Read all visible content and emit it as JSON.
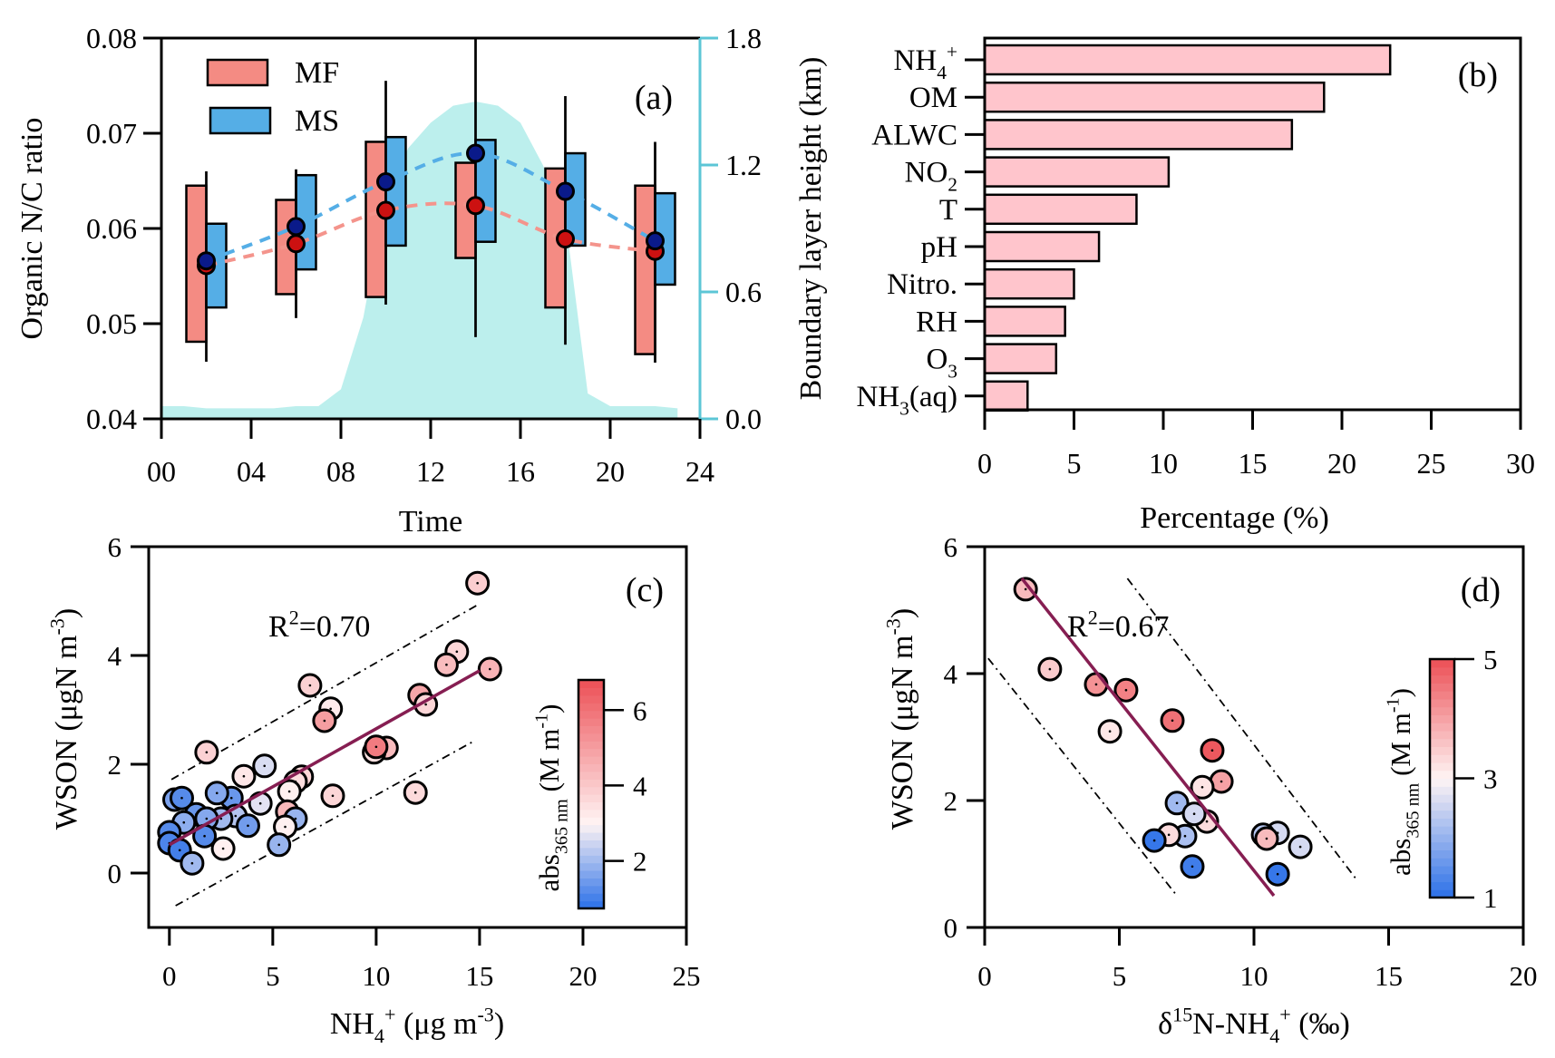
{
  "chart_data": [
    {
      "panel": "a",
      "type": "box",
      "panel_label": "(a)",
      "xlabel": "Time",
      "ylabel": "Organic N/C ratio",
      "y2label": "Boundary layer height (km)",
      "xlim": [
        0,
        24
      ],
      "ylim": [
        0.04,
        0.08
      ],
      "y2lim": [
        0.0,
        1.8
      ],
      "xticks": [
        "00",
        "04",
        "08",
        "12",
        "16",
        "20",
        "24"
      ],
      "xtick_values": [
        0,
        4,
        8,
        12,
        16,
        20,
        24
      ],
      "yticks": [
        "0.04",
        "0.05",
        "0.06",
        "0.07",
        "0.08"
      ],
      "ytick_values": [
        0.04,
        0.05,
        0.06,
        0.07,
        0.08
      ],
      "y2ticks": [
        "0.0",
        "0.6",
        "1.2",
        "1.8"
      ],
      "y2tick_values": [
        0.0,
        0.6,
        1.2,
        1.8
      ],
      "legend": [
        {
          "name": "MF",
          "color": "#f48b83"
        },
        {
          "name": "MS",
          "color": "#55aee6"
        }
      ],
      "legend_position": "top-left",
      "colors": {
        "MF": "#f48b83",
        "MS": "#55aee6",
        "MF_mean": "#cc1111",
        "MS_mean": "#0a1a8a",
        "MF_line": "#f4948c",
        "MS_line": "#55aee6",
        "BLH": "#bcefed",
        "right_axis": "#5cc6d6"
      },
      "series": [
        {
          "name": "MF",
          "times": [
            2,
            6,
            10,
            14,
            18,
            22
          ],
          "q1": [
            0.0481,
            0.0531,
            0.0528,
            0.0569,
            0.0517,
            0.0468
          ],
          "q3": [
            0.0645,
            0.063,
            0.0691,
            0.0669,
            0.0663,
            0.0645
          ],
          "mean": [
            0.0561,
            0.0584,
            0.0619,
            0.0624,
            0.0589,
            0.0576
          ]
        },
        {
          "name": "MS",
          "times": [
            2,
            6,
            10,
            14,
            18,
            22
          ],
          "q1": [
            0.0517,
            0.0557,
            0.0582,
            0.0586,
            0.0582,
            0.0541
          ],
          "q3": [
            0.0605,
            0.0656,
            0.0696,
            0.0693,
            0.0679,
            0.0637
          ],
          "mean": [
            0.0566,
            0.0602,
            0.0649,
            0.0679,
            0.0639,
            0.0587
          ]
        }
      ],
      "whiskers": {
        "times": [
          2,
          6,
          10,
          14,
          18,
          22
        ],
        "low": [
          0.046,
          0.0506,
          0.052,
          0.0486,
          0.0478,
          0.0459
        ],
        "high": [
          0.066,
          0.0662,
          0.0755,
          0.08,
          0.0739,
          0.0691
        ]
      },
      "boundary_layer_height": {
        "x": [
          0,
          1,
          2,
          3,
          4,
          5,
          6,
          7,
          8,
          9,
          10,
          11,
          12,
          13,
          14,
          15,
          16,
          17,
          18,
          19,
          20,
          21,
          22,
          23
        ],
        "y": [
          0.06,
          0.06,
          0.05,
          0.05,
          0.05,
          0.05,
          0.06,
          0.06,
          0.14,
          0.48,
          1.05,
          1.28,
          1.4,
          1.48,
          1.5,
          1.48,
          1.4,
          1.2,
          0.95,
          0.12,
          0.06,
          0.06,
          0.06,
          0.05
        ]
      }
    },
    {
      "panel": "b",
      "type": "bar",
      "orientation": "horizontal",
      "panel_label": "(b)",
      "xlabel": "Percentage (%)",
      "ylabel": "",
      "xlim": [
        0,
        30
      ],
      "xticks": [
        "0",
        "5",
        "10",
        "15",
        "20",
        "25",
        "30"
      ],
      "xtick_values": [
        0,
        5,
        10,
        15,
        20,
        25,
        30
      ],
      "bar_color": "#ffc5cc",
      "categories": [
        {
          "base": "NH",
          "sub": "4",
          "sup": "+"
        },
        {
          "base": "OM",
          "sub": "",
          "sup": ""
        },
        {
          "base": "ALWC",
          "sub": "",
          "sup": ""
        },
        {
          "base": "NO",
          "sub": "2",
          "sup": ""
        },
        {
          "base": "T",
          "sub": "",
          "sup": ""
        },
        {
          "base": "pH",
          "sub": "",
          "sup": ""
        },
        {
          "base": "Nitro.",
          "sub": "",
          "sup": ""
        },
        {
          "base": "RH",
          "sub": "",
          "sup": ""
        },
        {
          "base": "O",
          "sub": "3",
          "sup": ""
        },
        {
          "base": "NH",
          "sub": "3",
          "sup": "",
          "suffix": "(aq)"
        }
      ],
      "values": [
        22.7,
        19.0,
        17.2,
        10.3,
        8.5,
        6.4,
        5.0,
        4.5,
        4.0,
        2.4
      ]
    },
    {
      "panel": "c",
      "type": "scatter",
      "panel_label": "(c)",
      "xlabel": {
        "base": "NH",
        "sub": "4",
        "sup": "+",
        "rest": " (μg m",
        "rest_sup": "-3",
        "end": ")"
      },
      "ylabel": {
        "base": "WSON (μgN m",
        "sup": "-3",
        "end": ")"
      },
      "xlim": [
        -1,
        25
      ],
      "ylim": [
        -1,
        6
      ],
      "xticks": [
        "0",
        "5",
        "10",
        "15",
        "20",
        "25"
      ],
      "xtick_values": [
        0,
        5,
        10,
        15,
        20,
        25
      ],
      "yticks": [
        "0",
        "2",
        "4",
        "6"
      ],
      "ytick_values": [
        0,
        2,
        4,
        6
      ],
      "annotation": {
        "text": "R",
        "sup": "2",
        "rest": "=0.70"
      },
      "colorbar": {
        "label": "abs",
        "label_sub": "365 nm",
        "label_rest": " (M m",
        "label_sup": "-1",
        "label_end": ")",
        "range": [
          0.74,
          6.8
        ],
        "ticks": [
          "2",
          "4",
          "6"
        ],
        "tick_values": [
          2,
          4,
          6
        ],
        "center": 3.0
      },
      "fit": {
        "x": [
          0,
          15.0
        ],
        "y": [
          0.52,
          3.72
        ]
      },
      "bounds_upper": {
        "x": [
          0.1,
          15.0
        ],
        "y": [
          1.72,
          4.95
        ]
      },
      "bounds_lower": {
        "x": [
          0.3,
          14.7
        ],
        "y": [
          -0.6,
          2.42
        ]
      },
      "points": [
        {
          "x": 14.9,
          "y": 5.33,
          "c": 3.9
        },
        {
          "x": 13.9,
          "y": 4.07,
          "c": 3.7
        },
        {
          "x": 13.4,
          "y": 3.83,
          "c": 4.3
        },
        {
          "x": 15.5,
          "y": 3.75,
          "c": 4.5
        },
        {
          "x": 6.8,
          "y": 3.45,
          "c": 3.8
        },
        {
          "x": 7.8,
          "y": 3.02,
          "c": 3.2
        },
        {
          "x": 7.5,
          "y": 2.8,
          "c": 5.0
        },
        {
          "x": 12.1,
          "y": 3.27,
          "c": 4.8
        },
        {
          "x": 12.4,
          "y": 3.1,
          "c": 3.7
        },
        {
          "x": 10.5,
          "y": 2.3,
          "c": 4.3
        },
        {
          "x": 9.9,
          "y": 2.22,
          "c": 3.4
        },
        {
          "x": 10.0,
          "y": 2.32,
          "c": 5.8
        },
        {
          "x": 1.8,
          "y": 2.22,
          "c": 3.8
        },
        {
          "x": 4.6,
          "y": 1.97,
          "c": 2.6
        },
        {
          "x": 3.6,
          "y": 1.78,
          "c": 3.3
        },
        {
          "x": 6.4,
          "y": 1.77,
          "c": 3.7
        },
        {
          "x": 6.1,
          "y": 1.68,
          "c": 3.5
        },
        {
          "x": 11.9,
          "y": 1.48,
          "c": 3.6
        },
        {
          "x": 7.9,
          "y": 1.42,
          "c": 3.7
        },
        {
          "x": 5.8,
          "y": 1.5,
          "c": 3.1
        },
        {
          "x": 4.4,
          "y": 1.28,
          "c": 2.7
        },
        {
          "x": 0.25,
          "y": 1.35,
          "c": 1.6
        },
        {
          "x": 0.6,
          "y": 1.38,
          "c": 1.2
        },
        {
          "x": 3.0,
          "y": 1.38,
          "c": 1.4
        },
        {
          "x": 2.3,
          "y": 1.47,
          "c": 1.7
        },
        {
          "x": 3.2,
          "y": 1.05,
          "c": 2.2
        },
        {
          "x": 1.3,
          "y": 1.08,
          "c": 1.4
        },
        {
          "x": 2.5,
          "y": 1.0,
          "c": 2.0
        },
        {
          "x": 1.8,
          "y": 1.0,
          "c": 1.7
        },
        {
          "x": 5.7,
          "y": 1.13,
          "c": 4.4
        },
        {
          "x": 6.1,
          "y": 1.0,
          "c": 1.9
        },
        {
          "x": 5.6,
          "y": 0.85,
          "c": 3.1
        },
        {
          "x": 3.8,
          "y": 0.87,
          "c": 1.5
        },
        {
          "x": 0.7,
          "y": 0.93,
          "c": 1.8
        },
        {
          "x": 1.7,
          "y": 0.68,
          "c": 1.2
        },
        {
          "x": 2.6,
          "y": 0.45,
          "c": 3.1
        },
        {
          "x": 0.0,
          "y": 0.75,
          "c": 1.2
        },
        {
          "x": 0.0,
          "y": 0.55,
          "c": 1.1
        },
        {
          "x": 0.5,
          "y": 0.42,
          "c": 1.0
        },
        {
          "x": 5.3,
          "y": 0.52,
          "c": 1.9
        },
        {
          "x": 1.1,
          "y": 0.18,
          "c": 2.0
        }
      ]
    },
    {
      "panel": "d",
      "type": "scatter",
      "panel_label": "(d)",
      "xlabel": {
        "pre": "δ",
        "pre_sup": "15",
        "base": "N-NH",
        "sub": "4",
        "sup": "+",
        "rest": " (‰)"
      },
      "ylabel": {
        "base": "WSON (μgN m",
        "sup": "-3",
        "end": ")"
      },
      "xlim": [
        0,
        20
      ],
      "ylim": [
        0,
        6
      ],
      "xticks": [
        "0",
        "5",
        "10",
        "15",
        "20"
      ],
      "xtick_values": [
        0,
        5,
        10,
        15,
        20
      ],
      "yticks": [
        "0",
        "2",
        "4",
        "6"
      ],
      "ytick_values": [
        0,
        2,
        4,
        6
      ],
      "annotation": {
        "text": "R",
        "sup": "2",
        "rest": "=0.67"
      },
      "colorbar": {
        "label": "abs",
        "label_sub": "365 nm",
        "label_rest": " (M m",
        "label_sup": "-1",
        "label_end": ")",
        "range": [
          1,
          5
        ],
        "ticks": [
          "1",
          "3",
          "5"
        ],
        "tick_values": [
          1,
          3,
          5
        ],
        "center": 3.0
      },
      "fit": {
        "x": [
          1.38,
          10.74
        ],
        "y": [
          5.5,
          0.5
        ]
      },
      "bounds_upper": {
        "x": [
          5.3,
          13.8
        ],
        "y": [
          5.5,
          0.76
        ]
      },
      "bounds_lower": {
        "x": [
          0.13,
          7.14
        ],
        "y": [
          4.24,
          0.5
        ]
      },
      "points": [
        {
          "x": 1.52,
          "y": 5.33,
          "c": 3.7
        },
        {
          "x": 2.42,
          "y": 4.07,
          "c": 3.5
        },
        {
          "x": 4.14,
          "y": 3.83,
          "c": 4.2
        },
        {
          "x": 5.25,
          "y": 3.74,
          "c": 4.4
        },
        {
          "x": 4.65,
          "y": 3.09,
          "c": 3.15
        },
        {
          "x": 6.97,
          "y": 3.26,
          "c": 4.6
        },
        {
          "x": 8.45,
          "y": 2.79,
          "c": 4.9
        },
        {
          "x": 8.79,
          "y": 2.3,
          "c": 4.0
        },
        {
          "x": 8.08,
          "y": 2.21,
          "c": 3.2
        },
        {
          "x": 8.25,
          "y": 1.67,
          "c": 3.3
        },
        {
          "x": 7.14,
          "y": 1.96,
          "c": 2.1
        },
        {
          "x": 7.78,
          "y": 1.79,
          "c": 2.6
        },
        {
          "x": 7.44,
          "y": 1.44,
          "c": 2.2
        },
        {
          "x": 6.84,
          "y": 1.46,
          "c": 3.3
        },
        {
          "x": 6.3,
          "y": 1.37,
          "c": 1.1
        },
        {
          "x": 7.71,
          "y": 0.96,
          "c": 1.2
        },
        {
          "x": 10.88,
          "y": 1.49,
          "c": 2.6
        },
        {
          "x": 10.34,
          "y": 1.46,
          "c": 2.3
        },
        {
          "x": 10.47,
          "y": 1.4,
          "c": 3.7
        },
        {
          "x": 11.72,
          "y": 1.27,
          "c": 2.6
        },
        {
          "x": 10.88,
          "y": 0.84,
          "c": 1.1
        }
      ]
    }
  ]
}
